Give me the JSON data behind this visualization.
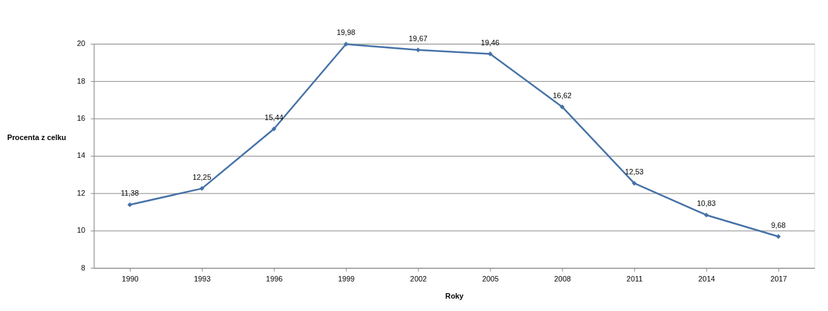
{
  "chart_data": {
    "type": "line",
    "xlabel": "Roky",
    "ylabel": "Procenta z celku",
    "categories": [
      "1990",
      "1993",
      "1996",
      "1999",
      "2002",
      "2005",
      "2008",
      "2011",
      "2014",
      "2017"
    ],
    "series": [
      {
        "color": "#4572a7",
        "values": [
          11.38,
          12.25,
          15.44,
          19.98,
          19.67,
          19.46,
          16.62,
          12.53,
          10.83,
          9.68
        ],
        "value_labels": [
          "11,38",
          "12,25",
          "15,44",
          "19,98",
          "19,67",
          "19,46",
          "16,62",
          "12,53",
          "10,83",
          "9,68"
        ]
      }
    ],
    "ylim": [
      8,
      20
    ],
    "yticks": [
      8,
      10,
      12,
      14,
      16,
      18,
      20
    ],
    "grid": "y",
    "marker": "diamond",
    "line_style": "solid"
  }
}
